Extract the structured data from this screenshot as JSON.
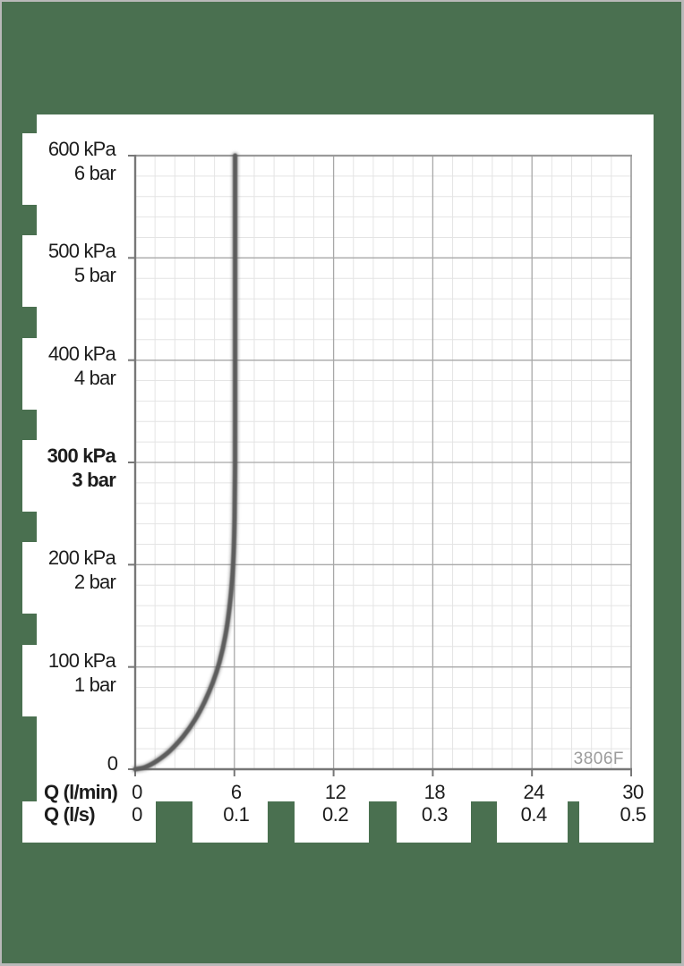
{
  "watermark": "3806F",
  "colors": {
    "background_green": "#4a7050",
    "frame_border_gray": "#b9b9b9",
    "panel_white": "#ffffff",
    "curve_gray": "#5d5d5d",
    "watermark_gray": "#9b9b9b",
    "grid_minor": "#e4e4e4",
    "grid_major": "#a8a8a8",
    "axis_dark": "#777777",
    "frame_line": "#9a9a9a",
    "text": "#1c1c1c"
  },
  "chart_data": {
    "type": "line",
    "title": "",
    "grid": true,
    "legend_position": "none",
    "x_axis": {
      "label_primary": "Q (l/min)",
      "label_secondary": "Q (l/s)",
      "ticks_primary": [
        "0",
        "6",
        "12",
        "18",
        "24",
        "30"
      ],
      "ticks_secondary": [
        "0",
        "0.1",
        "0.2",
        "0.3",
        "0.4",
        "0.5"
      ],
      "xlim": [
        0,
        30
      ],
      "major_step_lmin": 6,
      "minor_divisions_per_major": 5
    },
    "y_axis": {
      "unit_primary": "kPa",
      "unit_secondary": "bar",
      "ticks": [
        {
          "kpa": "600 kPa",
          "bar": "6 bar",
          "value": 600,
          "bold": false
        },
        {
          "kpa": "500 kPa",
          "bar": "5 bar",
          "value": 500,
          "bold": false
        },
        {
          "kpa": "400 kPa",
          "bar": "4 bar",
          "value": 400,
          "bold": false
        },
        {
          "kpa": "300 kPa",
          "bar": "3 bar",
          "value": 300,
          "bold": true
        },
        {
          "kpa": "200 kPa",
          "bar": "2 bar",
          "value": 200,
          "bold": false
        },
        {
          "kpa": "100 kPa",
          "bar": "1 bar",
          "value": 100,
          "bold": false
        }
      ],
      "zero_label": "0",
      "ylim": [
        0,
        600
      ],
      "major_step_kpa": 100,
      "minor_divisions_per_major": 5
    },
    "series": [
      {
        "name": "flow-rate-curve",
        "points_q_lmin_vs_kpa": [
          [
            0,
            0
          ],
          [
            0.6,
            2
          ],
          [
            1.3,
            8
          ],
          [
            2.1,
            18
          ],
          [
            2.9,
            32
          ],
          [
            3.6,
            48
          ],
          [
            4.2,
            66
          ],
          [
            4.7,
            85
          ],
          [
            5.1,
            105
          ],
          [
            5.45,
            130
          ],
          [
            5.68,
            155
          ],
          [
            5.85,
            182
          ],
          [
            5.95,
            210
          ],
          [
            6.01,
            245
          ],
          [
            6.04,
            290
          ],
          [
            6.045,
            340
          ],
          [
            6.045,
            600
          ]
        ]
      }
    ]
  }
}
